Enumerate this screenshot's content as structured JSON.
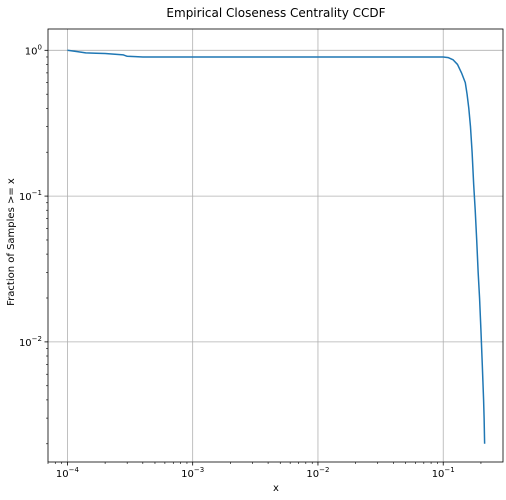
{
  "chart_data": {
    "type": "line",
    "title": "Empirical Closeness Centrality CCDF",
    "xlabel": "x",
    "ylabel": "Fraction of Samples >= x",
    "x_scale": "log",
    "y_scale": "log",
    "xlim": [
      7e-05,
      0.3
    ],
    "ylim": [
      0.0015,
      1.4
    ],
    "grid": true,
    "x_ticks": [
      {
        "value": 0.0001,
        "base": "10",
        "exp": "−4"
      },
      {
        "value": 0.001,
        "base": "10",
        "exp": "−3"
      },
      {
        "value": 0.01,
        "base": "10",
        "exp": "−2"
      },
      {
        "value": 0.1,
        "base": "10",
        "exp": "−1"
      }
    ],
    "y_ticks": [
      {
        "value": 1,
        "base": "10",
        "exp": "0"
      },
      {
        "value": 0.1,
        "base": "10",
        "exp": "−1"
      },
      {
        "value": 0.01,
        "base": "10",
        "exp": "−2"
      }
    ],
    "color": "#1f77b4",
    "series": [
      {
        "x": [
          0.0001,
          0.00012,
          0.00014,
          0.00017,
          0.0002,
          0.00024,
          0.00028,
          0.0003,
          0.00035,
          0.0004,
          0.0005,
          0.001,
          0.01,
          0.1,
          0.11,
          0.12,
          0.13,
          0.14,
          0.15,
          0.155,
          0.16,
          0.165,
          0.17,
          0.175,
          0.18,
          0.185,
          0.19,
          0.195,
          0.2,
          0.205,
          0.21,
          0.212,
          0.214
        ],
        "y": [
          1.0,
          0.98,
          0.96,
          0.955,
          0.95,
          0.94,
          0.93,
          0.91,
          0.905,
          0.9,
          0.9,
          0.9,
          0.9,
          0.9,
          0.89,
          0.86,
          0.8,
          0.7,
          0.6,
          0.5,
          0.4,
          0.3,
          0.2,
          0.12,
          0.08,
          0.05,
          0.03,
          0.02,
          0.012,
          0.007,
          0.004,
          0.003,
          0.002
        ]
      }
    ]
  }
}
